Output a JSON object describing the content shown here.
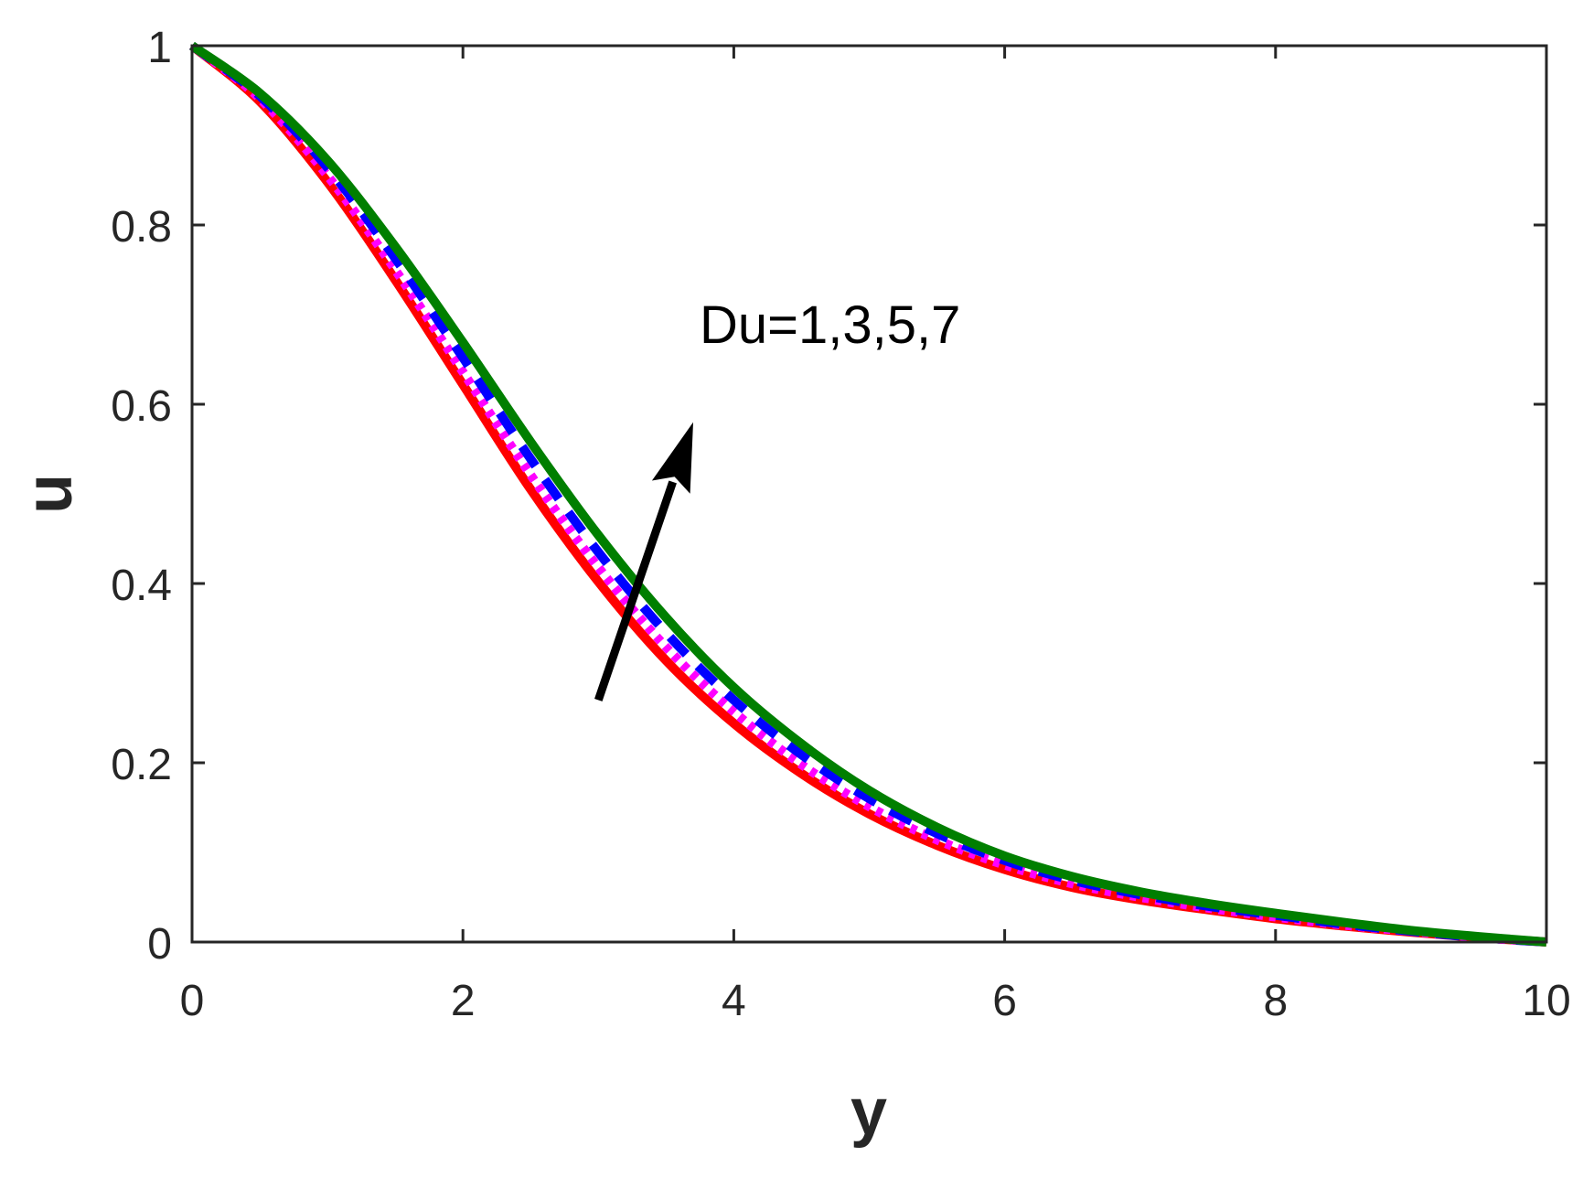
{
  "chart_data": {
    "type": "line",
    "title": "",
    "xlabel": "y",
    "ylabel": "u",
    "xlim": [
      0,
      10
    ],
    "ylim": [
      0,
      1
    ],
    "xticks": [
      0,
      2,
      4,
      6,
      8,
      10
    ],
    "yticks": [
      0,
      0.2,
      0.4,
      0.6,
      0.8,
      1
    ],
    "xtick_labels": [
      "0",
      "2",
      "4",
      "6",
      "8",
      "10"
    ],
    "ytick_labels": [
      "0",
      "0.2",
      "0.4",
      "0.6",
      "0.8",
      "1"
    ],
    "grid": false,
    "legend": "none",
    "annotation": {
      "text": "Du=1,3,5,7",
      "arrow_from": [
        3.0,
        0.27
      ],
      "arrow_to": [
        3.7,
        0.58
      ]
    },
    "x": [
      0,
      0.5,
      1,
      1.5,
      2,
      2.5,
      3,
      3.5,
      4,
      4.5,
      5,
      5.5,
      6,
      6.5,
      7,
      7.5,
      8,
      8.5,
      9,
      9.5,
      10
    ],
    "series": [
      {
        "color": "#ff0000",
        "style": "solid",
        "values": [
          1.0,
          0.938,
          0.848,
          0.739,
          0.622,
          0.505,
          0.402,
          0.314,
          0.244,
          0.188,
          0.143,
          0.108,
          0.081,
          0.061,
          0.047,
          0.036,
          0.026,
          0.018,
          0.011,
          0.005,
          0.0
        ]
      },
      {
        "color": "#ff00ff",
        "style": "dotted",
        "values": [
          1.0,
          0.941,
          0.855,
          0.75,
          0.636,
          0.521,
          0.418,
          0.329,
          0.257,
          0.198,
          0.151,
          0.114,
          0.086,
          0.065,
          0.05,
          0.038,
          0.028,
          0.019,
          0.012,
          0.005,
          0.0
        ]
      },
      {
        "color": "#0000ff",
        "style": "dashed",
        "values": [
          1.0,
          0.944,
          0.864,
          0.763,
          0.652,
          0.539,
          0.435,
          0.345,
          0.27,
          0.209,
          0.16,
          0.121,
          0.091,
          0.069,
          0.053,
          0.04,
          0.03,
          0.02,
          0.012,
          0.005,
          0.0
        ]
      },
      {
        "color": "#007f00",
        "style": "solid",
        "values": [
          1.0,
          0.947,
          0.872,
          0.776,
          0.669,
          0.558,
          0.454,
          0.362,
          0.284,
          0.221,
          0.169,
          0.128,
          0.096,
          0.073,
          0.056,
          0.043,
          0.032,
          0.022,
          0.013,
          0.006,
          0.0
        ]
      }
    ]
  }
}
